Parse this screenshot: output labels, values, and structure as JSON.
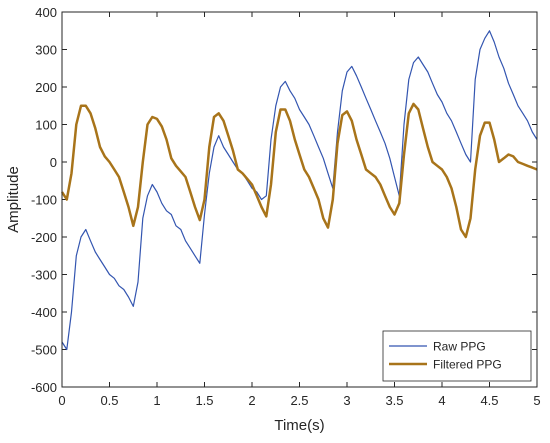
{
  "chart_data": {
    "type": "line",
    "xlabel": "Time(s)",
    "ylabel": "Amplitude",
    "x": [
      0,
      0.05,
      0.1,
      0.15,
      0.2,
      0.25,
      0.3,
      0.35,
      0.4,
      0.45,
      0.5,
      0.55,
      0.6,
      0.65,
      0.7,
      0.75,
      0.8,
      0.85,
      0.9,
      0.95,
      1,
      1.05,
      1.1,
      1.15,
      1.2,
      1.25,
      1.3,
      1.35,
      1.4,
      1.45,
      1.5,
      1.55,
      1.6,
      1.65,
      1.7,
      1.75,
      1.8,
      1.85,
      1.9,
      1.95,
      2,
      2.05,
      2.1,
      2.15,
      2.2,
      2.25,
      2.3,
      2.35,
      2.4,
      2.45,
      2.5,
      2.55,
      2.6,
      2.65,
      2.7,
      2.75,
      2.8,
      2.85,
      2.9,
      2.95,
      3,
      3.05,
      3.1,
      3.15,
      3.2,
      3.25,
      3.3,
      3.35,
      3.4,
      3.45,
      3.5,
      3.55,
      3.6,
      3.65,
      3.7,
      3.75,
      3.8,
      3.85,
      3.9,
      3.95,
      4,
      4.05,
      4.1,
      4.15,
      4.2,
      4.25,
      4.3,
      4.35,
      4.4,
      4.45,
      4.5,
      4.55,
      4.6,
      4.65,
      4.7,
      4.75,
      4.8,
      4.85,
      4.9,
      4.95,
      5
    ],
    "series": [
      {
        "name": "Raw PPG",
        "color": "#3355b0",
        "width": 1.2,
        "values": [
          -480,
          -500,
          -400,
          -250,
          -200,
          -180,
          -210,
          -240,
          -260,
          -280,
          -300,
          -310,
          -330,
          -340,
          -360,
          -385,
          -320,
          -150,
          -90,
          -60,
          -80,
          -110,
          -130,
          -140,
          -170,
          -180,
          -210,
          -230,
          -250,
          -270,
          -140,
          -30,
          40,
          70,
          40,
          20,
          0,
          -20,
          -30,
          -50,
          -70,
          -80,
          -100,
          -90,
          60,
          150,
          200,
          215,
          190,
          170,
          140,
          120,
          100,
          70,
          40,
          10,
          -30,
          -70,
          80,
          190,
          240,
          255,
          230,
          200,
          170,
          140,
          110,
          80,
          50,
          10,
          -40,
          -90,
          100,
          220,
          265,
          280,
          260,
          240,
          210,
          180,
          160,
          130,
          110,
          80,
          50,
          20,
          0,
          220,
          300,
          330,
          350,
          320,
          280,
          250,
          210,
          180,
          150,
          130,
          110,
          80,
          60
        ]
      },
      {
        "name": "Filtered PPG",
        "color": "#a8741a",
        "width": 2.5,
        "values": [
          -80,
          -100,
          -30,
          100,
          150,
          150,
          130,
          90,
          40,
          15,
          0,
          -20,
          -40,
          -80,
          -120,
          -170,
          -120,
          0,
          100,
          120,
          115,
          95,
          60,
          10,
          -10,
          -25,
          -40,
          -80,
          -120,
          -155,
          -100,
          40,
          120,
          130,
          110,
          70,
          30,
          -20,
          -30,
          -45,
          -60,
          -90,
          -120,
          -145,
          -60,
          80,
          140,
          140,
          110,
          60,
          20,
          -20,
          -40,
          -70,
          -100,
          -150,
          -175,
          -100,
          50,
          125,
          135,
          110,
          60,
          20,
          -20,
          -30,
          -40,
          -60,
          -90,
          -120,
          -140,
          -110,
          20,
          130,
          155,
          140,
          90,
          40,
          0,
          -10,
          -20,
          -40,
          -70,
          -120,
          -180,
          -200,
          -150,
          -20,
          70,
          105,
          105,
          60,
          0,
          10,
          20,
          15,
          0,
          -5,
          -10,
          -15,
          -20
        ]
      }
    ],
    "xlim": [
      0,
      5
    ],
    "xticks": [
      0,
      0.5,
      1,
      1.5,
      2,
      2.5,
      3,
      3.5,
      4,
      4.5,
      5
    ],
    "ylim": [
      -600,
      400
    ],
    "yticks": [
      -600,
      -500,
      -400,
      -300,
      -200,
      -100,
      0,
      100,
      200,
      300,
      400
    ],
    "grid": false,
    "legend": "lower right"
  }
}
